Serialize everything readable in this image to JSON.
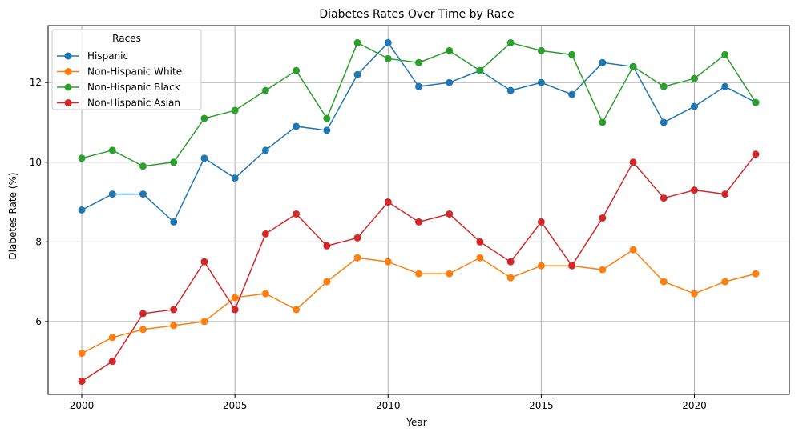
{
  "chart_data": {
    "type": "line",
    "title": "Diabetes Rates Over Time by Race",
    "xlabel": "Year",
    "ylabel": "Diabetes Rate (%)",
    "x": [
      2000,
      2001,
      2002,
      2003,
      2004,
      2005,
      2006,
      2007,
      2008,
      2009,
      2010,
      2011,
      2012,
      2013,
      2014,
      2015,
      2016,
      2017,
      2018,
      2019,
      2020,
      2021,
      2022
    ],
    "xlim": [
      1998.9,
      2023.1
    ],
    "ylim": [
      4.17,
      13.43
    ],
    "xticks": [
      2000,
      2005,
      2010,
      2015,
      2020
    ],
    "yticks": [
      6,
      8,
      10,
      12
    ],
    "grid": true,
    "legend": {
      "title": "Races",
      "placement": "top-left"
    },
    "series": [
      {
        "name": "Hispanic",
        "color": "#1f77b4",
        "values": [
          8.8,
          9.2,
          9.2,
          8.5,
          10.1,
          9.6,
          10.3,
          10.9,
          10.8,
          12.2,
          13.0,
          11.9,
          12.0,
          12.3,
          11.8,
          12.0,
          11.7,
          12.5,
          12.4,
          11.0,
          11.4,
          11.9,
          11.5
        ]
      },
      {
        "name": "Non-Hispanic White",
        "color": "#ff7f0e",
        "values": [
          5.2,
          5.6,
          5.8,
          5.9,
          6.0,
          6.6,
          6.7,
          6.3,
          7.0,
          7.6,
          7.5,
          7.2,
          7.2,
          7.6,
          7.1,
          7.4,
          7.4,
          7.3,
          7.8,
          7.0,
          6.7,
          7.0,
          7.2
        ]
      },
      {
        "name": "Non-Hispanic Black",
        "color": "#2ca02c",
        "values": [
          10.1,
          10.3,
          9.9,
          10.0,
          11.1,
          11.3,
          11.8,
          12.3,
          11.1,
          13.0,
          12.6,
          12.5,
          12.8,
          12.3,
          13.0,
          12.8,
          12.7,
          11.0,
          12.4,
          11.9,
          12.1,
          12.7,
          11.5
        ]
      },
      {
        "name": "Non-Hispanic Asian",
        "color": "#d62728",
        "values": [
          4.5,
          5.0,
          6.2,
          6.3,
          7.5,
          6.3,
          8.2,
          8.7,
          7.9,
          8.1,
          9.0,
          8.5,
          8.7,
          8.0,
          7.5,
          8.5,
          7.4,
          8.6,
          10.0,
          9.1,
          9.3,
          9.2,
          10.2
        ]
      }
    ]
  }
}
